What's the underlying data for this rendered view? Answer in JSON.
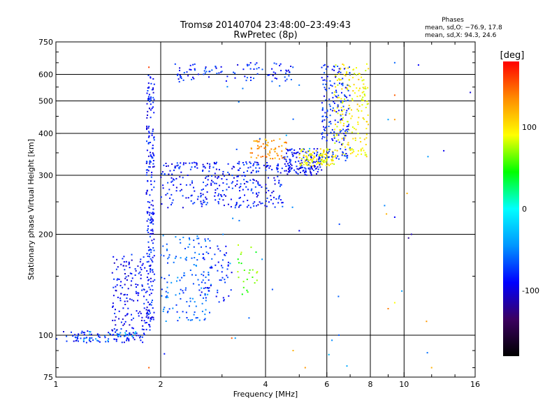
{
  "chart_data": {
    "type": "scatter",
    "title": "Tromsø 20140704 23:48:00–23:49:43",
    "subtitle": "RwPretec (8p)",
    "xlabel": "Frequency [MHz]",
    "ylabel": "Stationary phase Virtual Height [km]",
    "x_scale": "log",
    "y_scale": "log",
    "xlim": [
      1,
      16
    ],
    "ylim": [
      75,
      750
    ],
    "x_ticks": [
      1,
      2,
      4,
      6,
      8,
      10,
      16
    ],
    "x_tick_labels": [
      "1",
      "2",
      "4",
      "6",
      "8",
      "10",
      "16"
    ],
    "x_grid": [
      2,
      4,
      6,
      8,
      10
    ],
    "y_ticks": [
      75,
      100,
      200,
      300,
      400,
      500,
      600,
      750
    ],
    "y_tick_labels": [
      "75",
      "100",
      "200",
      "300",
      "400",
      "500",
      "600",
      "750"
    ],
    "y_grid": [
      100,
      200,
      300,
      400,
      500,
      600
    ],
    "grid": true,
    "stats_title": "Phases",
    "stats_lines": [
      "mean, sd,O: −76.9, 17.8",
      "mean, sd,X:  94.3, 24.6"
    ],
    "colorbar": {
      "label": "[deg]",
      "range": [
        -180,
        180
      ],
      "ticks": [
        100,
        0,
        -100
      ],
      "tick_labels": [
        "100",
        "0",
        "-100"
      ],
      "colors": [
        "#000000",
        "#3b0060",
        "#0000ff",
        "#0096ff",
        "#00ffff",
        "#00ff00",
        "#ffff00",
        "#ff8c00",
        "#ff0000"
      ]
    },
    "clusters": [
      {
        "name": "low_trace",
        "x": [
          1.0,
          1.8
        ],
        "y": [
          95,
          103
        ],
        "phase": -85,
        "n": 90
      },
      {
        "name": "low_trace_cyan",
        "x": [
          1.2,
          1.7
        ],
        "y": [
          96,
          104
        ],
        "phase": -40,
        "n": 25
      },
      {
        "name": "cusp_lower",
        "x": [
          1.45,
          1.9
        ],
        "y": [
          103,
          175
        ],
        "phase": -90,
        "n": 170
      },
      {
        "name": "vertical_branch",
        "x": [
          1.82,
          1.92
        ],
        "y": [
          110,
          600
        ],
        "phase": -85,
        "n": 210
      },
      {
        "name": "f1_cusp",
        "x": [
          2.0,
          2.8
        ],
        "y": [
          110,
          200
        ],
        "phase": -60,
        "n": 140
      },
      {
        "name": "f1_cusp_b",
        "x": [
          2.6,
          3.2
        ],
        "y": [
          125,
          185
        ],
        "phase": -80,
        "n": 60
      },
      {
        "name": "f2_plateau",
        "x": [
          2.0,
          4.5
        ],
        "y": [
          240,
          330
        ],
        "phase": -85,
        "n": 330
      },
      {
        "name": "f2_plateau_b",
        "x": [
          4.5,
          5.8
        ],
        "y": [
          300,
          360
        ],
        "phase": -90,
        "n": 150
      },
      {
        "name": "x_trace_orange",
        "x": [
          3.6,
          4.6
        ],
        "y": [
          335,
          385
        ],
        "phase": 130,
        "n": 60
      },
      {
        "name": "x_trace_yellow",
        "x": [
          5.0,
          6.3
        ],
        "y": [
          320,
          360
        ],
        "phase": 95,
        "n": 110
      },
      {
        "name": "x_trace_rise",
        "x": [
          6.3,
          7.9
        ],
        "y": [
          340,
          650
        ],
        "phase": 95,
        "n": 190
      },
      {
        "name": "o_trace_rise",
        "x": [
          5.8,
          7.0
        ],
        "y": [
          330,
          650
        ],
        "phase": -80,
        "n": 170
      },
      {
        "name": "upper_band",
        "x": [
          2.2,
          4.8
        ],
        "y": [
          570,
          650
        ],
        "phase": -80,
        "n": 95
      },
      {
        "name": "sporadic_mid",
        "x": [
          3.3,
          3.8
        ],
        "y": [
          130,
          190
        ],
        "phase": 60,
        "n": 25
      },
      {
        "name": "scatter_sparse",
        "x": [
          3.0,
          12.0
        ],
        "y": [
          80,
          600
        ],
        "phase": -50,
        "n": 35
      }
    ],
    "outliers": [
      {
        "x": 1.85,
        "y": 80,
        "phase": 150
      },
      {
        "x": 1.85,
        "y": 630,
        "phase": 160
      },
      {
        "x": 2.05,
        "y": 88,
        "phase": -85
      },
      {
        "x": 11.0,
        "y": 640,
        "phase": -90
      },
      {
        "x": 13.0,
        "y": 355,
        "phase": -95
      },
      {
        "x": 10.5,
        "y": 200,
        "phase": -110
      },
      {
        "x": 10.3,
        "y": 195,
        "phase": -120
      },
      {
        "x": 8.9,
        "y": 230,
        "phase": 120
      },
      {
        "x": 9.4,
        "y": 225,
        "phase": -90
      },
      {
        "x": 10.2,
        "y": 265,
        "phase": 120
      },
      {
        "x": 9.0,
        "y": 120,
        "phase": 140
      },
      {
        "x": 9.4,
        "y": 125,
        "phase": 90
      },
      {
        "x": 11.6,
        "y": 110,
        "phase": 130
      },
      {
        "x": 12.0,
        "y": 80,
        "phase": 120
      },
      {
        "x": 4.8,
        "y": 90,
        "phase": 120
      },
      {
        "x": 5.2,
        "y": 80,
        "phase": 130
      },
      {
        "x": 3.2,
        "y": 98,
        "phase": 150
      },
      {
        "x": 5.0,
        "y": 205,
        "phase": -95
      },
      {
        "x": 9.4,
        "y": 440,
        "phase": 130
      },
      {
        "x": 9.4,
        "y": 520,
        "phase": 150
      },
      {
        "x": 9.4,
        "y": 650,
        "phase": -60
      },
      {
        "x": 9.0,
        "y": 440,
        "phase": -40
      },
      {
        "x": 15.5,
        "y": 530,
        "phase": -100
      }
    ]
  }
}
